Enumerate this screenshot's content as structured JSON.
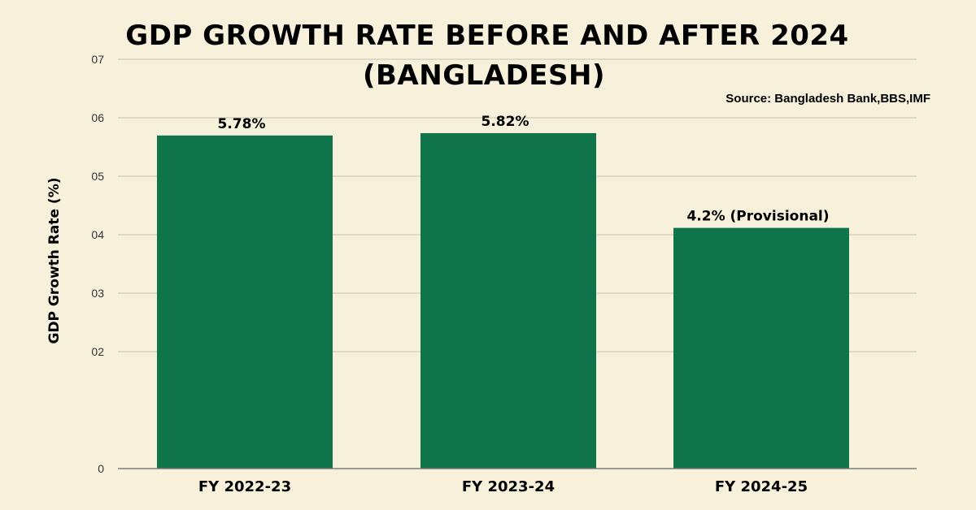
{
  "title_line1": "GDP GROWTH RATE  BEFORE AND AFTER 2024",
  "title_line2": "(BANGLADESH)",
  "source": "Source: Bangladesh Bank,BBS,IMF",
  "colors": {
    "background": "#f7f1dc",
    "bar": "#10744b",
    "grid": "#cfcab9",
    "axis": "#7a7a7a"
  },
  "chart_data": {
    "type": "bar",
    "categories": [
      "FY 2022-23",
      "FY 2023-24",
      "FY 2024-25"
    ],
    "values": [
      5.78,
      5.82,
      4.2
    ],
    "data_labels": [
      "5.78%",
      "5.82%",
      "4.2% (Provisional)"
    ],
    "ylabel": "GDP Growth Rate (%)",
    "xlabel": "",
    "yticks": [
      "0",
      "02",
      "03",
      "04",
      "05",
      "06",
      "07"
    ],
    "ytick_values": [
      0,
      2,
      3,
      4,
      5,
      6,
      7
    ],
    "ylim": [
      0,
      7
    ],
    "grid": true
  }
}
